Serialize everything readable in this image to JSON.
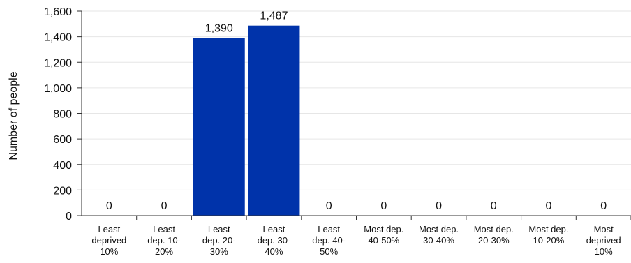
{
  "chart_data": {
    "type": "bar",
    "ylabel": "Number of people",
    "xlabel": "",
    "ylim": [
      0,
      1600
    ],
    "yticks": [
      0,
      200,
      400,
      600,
      800,
      1000,
      1200,
      1400,
      1600
    ],
    "ytick_labels": [
      "0",
      "200",
      "400",
      "600",
      "800",
      "1,000",
      "1,200",
      "1,400",
      "1,600"
    ],
    "grid": true,
    "categories": [
      [
        "Least",
        "deprived",
        "10%"
      ],
      [
        "Least",
        "dep. 10-",
        "20%"
      ],
      [
        "Least",
        "dep. 20-",
        "30%"
      ],
      [
        "Least",
        "dep. 30-",
        "40%"
      ],
      [
        "Least",
        "dep. 40-",
        "50%"
      ],
      [
        "Most dep.",
        "40-50%"
      ],
      [
        "Most dep.",
        "30-40%"
      ],
      [
        "Most dep.",
        "20-30%"
      ],
      [
        "Most dep.",
        "10-20%"
      ],
      [
        "Most",
        "deprived",
        "10%"
      ]
    ],
    "values": [
      0,
      0,
      1390,
      1487,
      0,
      0,
      0,
      0,
      0,
      0
    ],
    "data_labels": [
      "0",
      "0",
      "1,390",
      "1,487",
      "0",
      "0",
      "0",
      "0",
      "0",
      "0"
    ],
    "bar_color": "#0033AA",
    "grid_color": "#e6e6e6",
    "axis_color": "#333333"
  }
}
